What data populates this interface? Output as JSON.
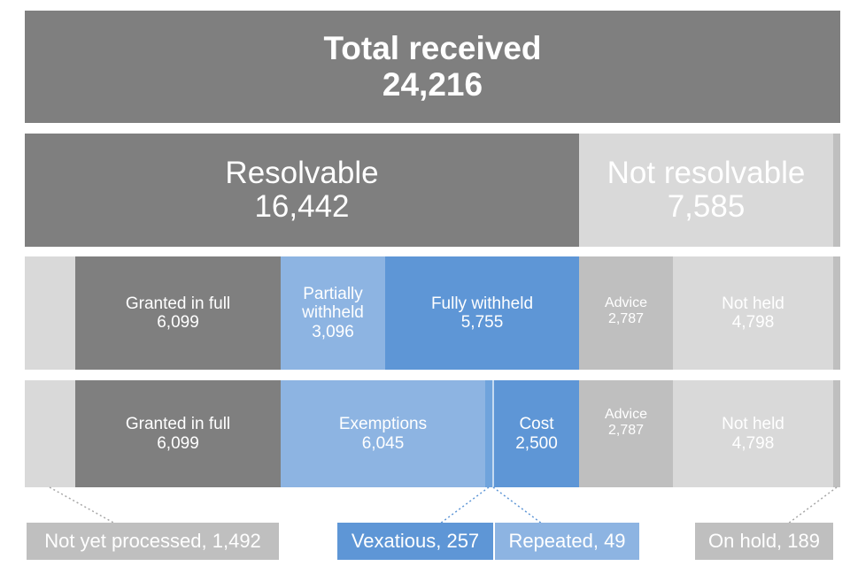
{
  "total": {
    "label": "Total received",
    "value": "24,216"
  },
  "row2": {
    "resolvable": {
      "label": "Resolvable",
      "value": "16,442"
    },
    "not_resolvable": {
      "label": "Not resolvable",
      "value": "7,585"
    }
  },
  "row3": {
    "granted": {
      "label": "Granted in full",
      "value": "6,099"
    },
    "partial": {
      "label1": "Partially",
      "label2": "withheld",
      "value": "3,096"
    },
    "fully": {
      "label": "Fully withheld",
      "value": "5,755"
    },
    "advice": {
      "label": "Advice",
      "value": "2,787"
    },
    "not_held": {
      "label": "Not held",
      "value": "4,798"
    }
  },
  "row4": {
    "granted": {
      "label": "Granted in full",
      "value": "6,099"
    },
    "exemptions": {
      "label": "Exemptions",
      "value": "6,045"
    },
    "cost": {
      "label": "Cost",
      "value": "2,500"
    },
    "advice": {
      "label": "Advice",
      "value": "2,787"
    },
    "not_held": {
      "label": "Not held",
      "value": "4,798"
    }
  },
  "callouts": {
    "not_yet_processed": "Not yet processed, 1,492",
    "vexatious": "Vexatious, 257",
    "repeated": "Repeated, 49",
    "on_hold": "On hold, 189"
  },
  "colors": {
    "dark_grey": "#7f7f7f",
    "mid_grey": "#bfbfbf",
    "light_grey": "#d9d9d9",
    "light_blue": "#8db4e2",
    "blue": "#5e96d6"
  }
}
